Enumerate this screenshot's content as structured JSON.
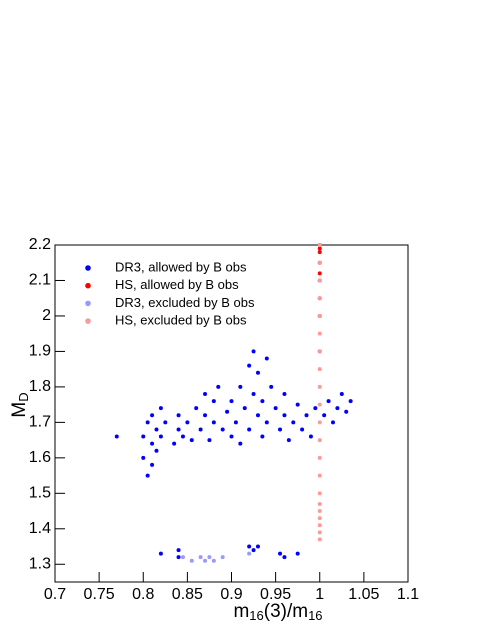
{
  "chart_data": {
    "type": "scatter",
    "x_label": [
      "m",
      "16",
      "(3)/m",
      "16"
    ],
    "y_label": [
      "M",
      "D"
    ],
    "xlim": [
      0.7,
      1.1
    ],
    "ylim": [
      1.25,
      2.2
    ],
    "xticks": [
      0.7,
      0.75,
      0.8,
      0.85,
      0.9,
      0.95,
      1,
      1.05,
      1.1
    ],
    "yticks": [
      1.3,
      1.4,
      1.5,
      1.6,
      1.7,
      1.8,
      1.9,
      2,
      2.1,
      2.2
    ],
    "legend": "upper-left",
    "series": [
      {
        "name": "DR3, allowed by B obs",
        "color": "#0000ff",
        "x": [
          0.77,
          0.8,
          0.8,
          0.805,
          0.805,
          0.81,
          0.81,
          0.81,
          0.815,
          0.815,
          0.82,
          0.82,
          0.825,
          0.835,
          0.84,
          0.84,
          0.845,
          0.85,
          0.855,
          0.86,
          0.865,
          0.87,
          0.87,
          0.875,
          0.88,
          0.88,
          0.885,
          0.89,
          0.895,
          0.9,
          0.9,
          0.905,
          0.91,
          0.91,
          0.915,
          0.92,
          0.92,
          0.925,
          0.925,
          0.93,
          0.93,
          0.935,
          0.935,
          0.94,
          0.94,
          0.945,
          0.95,
          0.955,
          0.96,
          0.96,
          0.965,
          0.97,
          0.975,
          0.98,
          0.985,
          0.99,
          0.995,
          1.005,
          1.01,
          1.015,
          1.02,
          1.025,
          1.03,
          1.035,
          0.82,
          0.84,
          0.84,
          0.92,
          0.925,
          0.93,
          0.955,
          0.96,
          0.975
        ],
        "y": [
          1.66,
          1.6,
          1.66,
          1.55,
          1.7,
          1.58,
          1.64,
          1.72,
          1.62,
          1.68,
          1.66,
          1.74,
          1.7,
          1.64,
          1.68,
          1.72,
          1.66,
          1.7,
          1.65,
          1.74,
          1.68,
          1.72,
          1.78,
          1.65,
          1.7,
          1.76,
          1.8,
          1.68,
          1.73,
          1.66,
          1.76,
          1.7,
          1.8,
          1.64,
          1.74,
          1.86,
          1.68,
          1.78,
          1.9,
          1.72,
          1.84,
          1.66,
          1.76,
          1.88,
          1.7,
          1.8,
          1.74,
          1.68,
          1.72,
          1.78,
          1.65,
          1.7,
          1.75,
          1.68,
          1.72,
          1.66,
          1.74,
          1.72,
          1.76,
          1.7,
          1.74,
          1.78,
          1.73,
          1.76,
          1.33,
          1.34,
          1.32,
          1.35,
          1.34,
          1.35,
          1.33,
          1.32,
          1.33
        ]
      },
      {
        "name": "HS, allowed by B obs",
        "color": "#ff0000",
        "x": [
          1,
          1,
          1,
          1,
          1,
          1,
          1,
          1,
          1
        ],
        "y": [
          2.2,
          2.19,
          2.18,
          2.15,
          2.12,
          2.1,
          2.05,
          2,
          1.9
        ]
      },
      {
        "name": "DR3, excluded by B obs",
        "color": "#9999ff",
        "x": [
          0.845,
          0.855,
          0.865,
          0.87,
          0.875,
          0.88,
          0.89,
          0.92
        ],
        "y": [
          1.32,
          1.31,
          1.32,
          1.31,
          1.32,
          1.31,
          1.32,
          1.33
        ]
      },
      {
        "name": "HS, excluded by B obs",
        "color": "#ff9999",
        "x": [
          1,
          1,
          1,
          1,
          1,
          1,
          1,
          1,
          1,
          1,
          1,
          1,
          1,
          1,
          1,
          1,
          1,
          1,
          1,
          1,
          1
        ],
        "y": [
          2.2,
          2.15,
          2.1,
          2.05,
          2,
          1.95,
          1.9,
          1.85,
          1.8,
          1.75,
          1.7,
          1.65,
          1.6,
          1.55,
          1.5,
          1.47,
          1.45,
          1.43,
          1.41,
          1.39,
          1.37
        ]
      }
    ]
  }
}
